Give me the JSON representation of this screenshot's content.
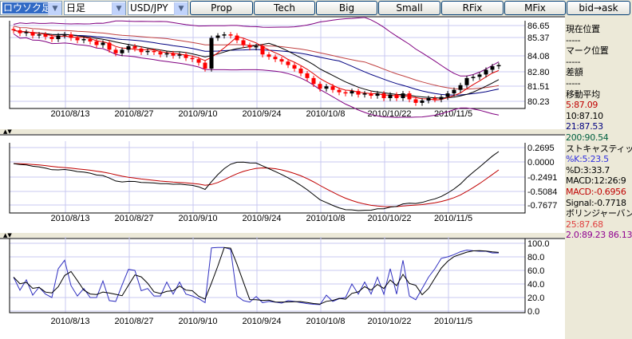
{
  "toolbar": {
    "chart_type": "ロウソク足",
    "period": "日足",
    "pair": "USD/JPY",
    "buttons": [
      "Prop",
      "Tech",
      "Big",
      "Small",
      "RFix",
      "MFix",
      "bid→ask"
    ]
  },
  "colors": {
    "ma5": "#e00000",
    "ma10": "#000000",
    "ma21": "#000080",
    "ma200": "#006040",
    "bollinger": "#800080",
    "bull": "#000000",
    "bear": "#ff0000",
    "stoch_k": "#3030c0",
    "stoch_d": "#000000",
    "macd": "#000000",
    "signal": "#c00000",
    "grid": "#c8c8f0"
  },
  "side": {
    "current_pos_label": "現在位置",
    "current_pos": "-----",
    "mark_pos_label": "マーク位置",
    "mark_pos": "-----",
    "diff_label": "差額",
    "diff": "-----",
    "ma_label": "移動平均",
    "ma5": "5:87.09",
    "ma10": "10:87.10",
    "ma21": "21:87.53",
    "ma200": "200:90.54",
    "stoch_label": "ストキャスティックス",
    "stoch_k": "%K:5:23.5",
    "stoch_d": "%D:3:33.7",
    "macd_params": "MACD:12:26:9",
    "macd": "MACD:-0.6956",
    "signal": "Signal:-0.7718",
    "boll_label": "ボリンジャーバンド",
    "boll_ma": "25:87.68",
    "boll_band": "2.0:89.23 86.13"
  },
  "chart_data": [
    {
      "type": "candlestick",
      "yticks": [
        "86.65",
        "85.37",
        "84.08",
        "82.80",
        "81.51",
        "80.23"
      ],
      "ylim": [
        80.23,
        86.65
      ],
      "xticks": [
        "2010/8/13",
        "2010/8/27",
        "2010/9/10",
        "2010/9/24",
        "2010/10/8",
        "2010/10/22",
        "2010/11/5"
      ],
      "close": [
        86.25,
        86.0,
        86.1,
        85.8,
        85.9,
        85.7,
        85.5,
        85.8,
        85.9,
        85.6,
        85.4,
        85.5,
        85.3,
        85.0,
        85.2,
        84.6,
        84.3,
        84.6,
        84.9,
        84.7,
        84.4,
        84.5,
        84.4,
        84.2,
        84.3,
        84.1,
        84.2,
        83.9,
        83.8,
        83.5,
        83.0,
        85.6,
        85.8,
        85.9,
        85.8,
        85.4,
        85.0,
        84.8,
        84.9,
        84.2,
        84.0,
        83.8,
        83.6,
        83.3,
        83.0,
        82.6,
        82.2,
        81.7,
        81.3,
        81.5,
        81.2,
        81.0,
        80.9,
        81.1,
        80.8,
        80.9,
        80.7,
        80.9,
        80.5,
        80.8,
        80.5,
        80.9,
        80.4,
        80.1,
        80.3,
        80.5,
        80.4,
        80.6,
        80.9,
        81.2,
        81.6,
        82.2,
        82.3,
        82.5,
        82.9,
        83.2,
        83.3
      ]
    },
    {
      "type": "line",
      "name": "MACD",
      "yticks": [
        "0.2695",
        "0.0000",
        "-0.2491",
        "-0.5084",
        "-0.7677"
      ],
      "ylim": [
        -0.7677,
        0.2695
      ]
    },
    {
      "type": "line",
      "name": "Stochastics",
      "yticks": [
        "100.0",
        "80.0",
        "60.0",
        "40.0",
        "20.0",
        "0.0"
      ],
      "ylim": [
        0,
        100
      ]
    }
  ]
}
